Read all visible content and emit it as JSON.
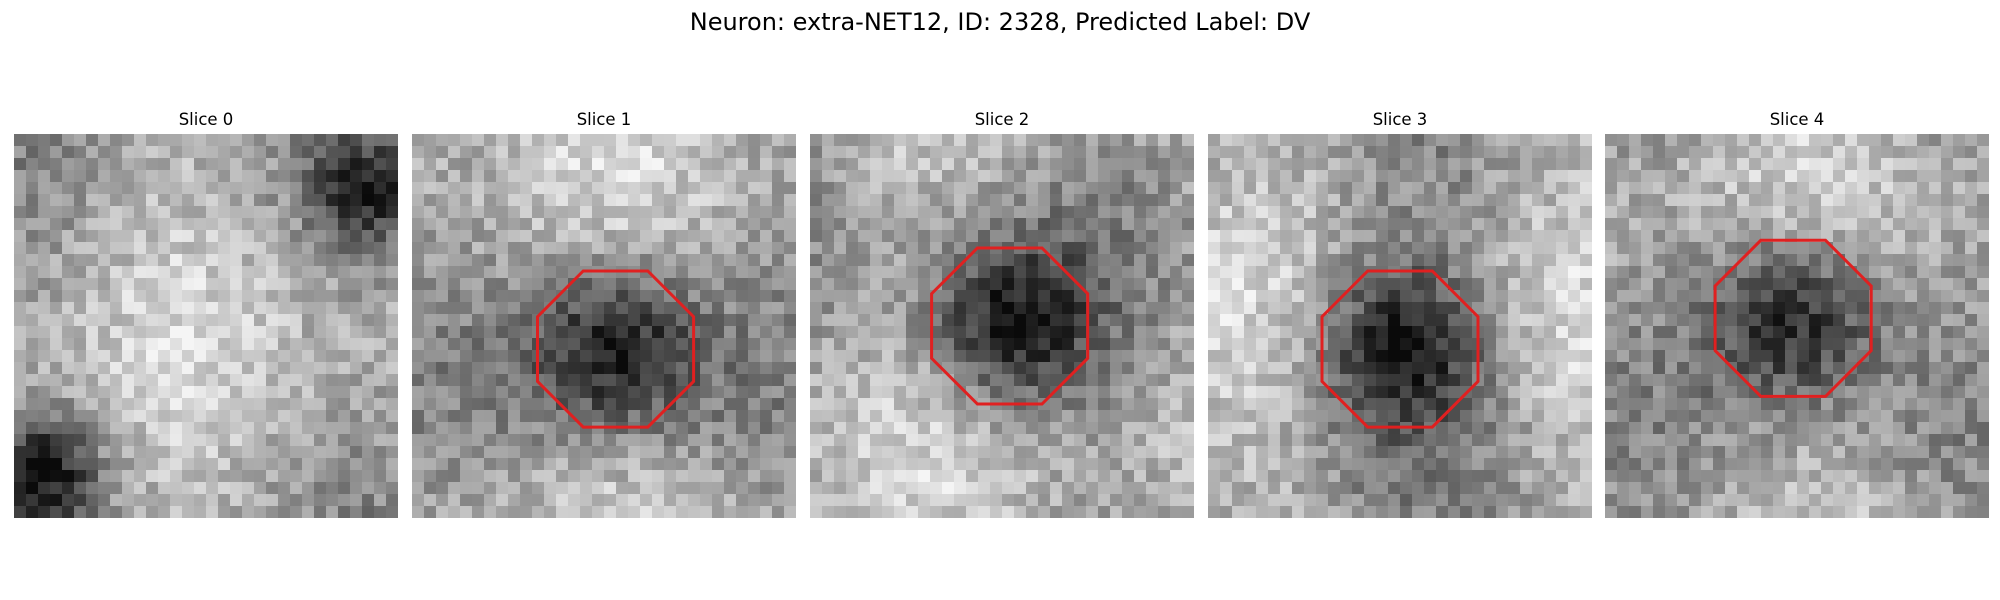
{
  "figure": {
    "title": "Neuron: extra-NET12, ID: 2328, Predicted Label: DV"
  },
  "panels": [
    {
      "title": "Slice 0",
      "seed": 11,
      "roi": false,
      "dark_regions": [
        "bottom-left",
        "top-right"
      ],
      "roi_color": "#e02020"
    },
    {
      "title": "Slice 1",
      "seed": 23,
      "roi": true,
      "roi_center": [
        0.53,
        0.56
      ],
      "roi_radius": 0.22,
      "roi_color": "#e02020"
    },
    {
      "title": "Slice 2",
      "seed": 37,
      "roi": true,
      "roi_center": [
        0.52,
        0.5
      ],
      "roi_radius": 0.22,
      "roi_color": "#e02020"
    },
    {
      "title": "Slice 3",
      "seed": 51,
      "roi": true,
      "roi_center": [
        0.5,
        0.56
      ],
      "roi_radius": 0.22,
      "roi_color": "#e02020"
    },
    {
      "title": "Slice 4",
      "seed": 67,
      "roi": true,
      "roi_center": [
        0.49,
        0.48
      ],
      "roi_radius": 0.22,
      "roi_color": "#e02020"
    }
  ]
}
